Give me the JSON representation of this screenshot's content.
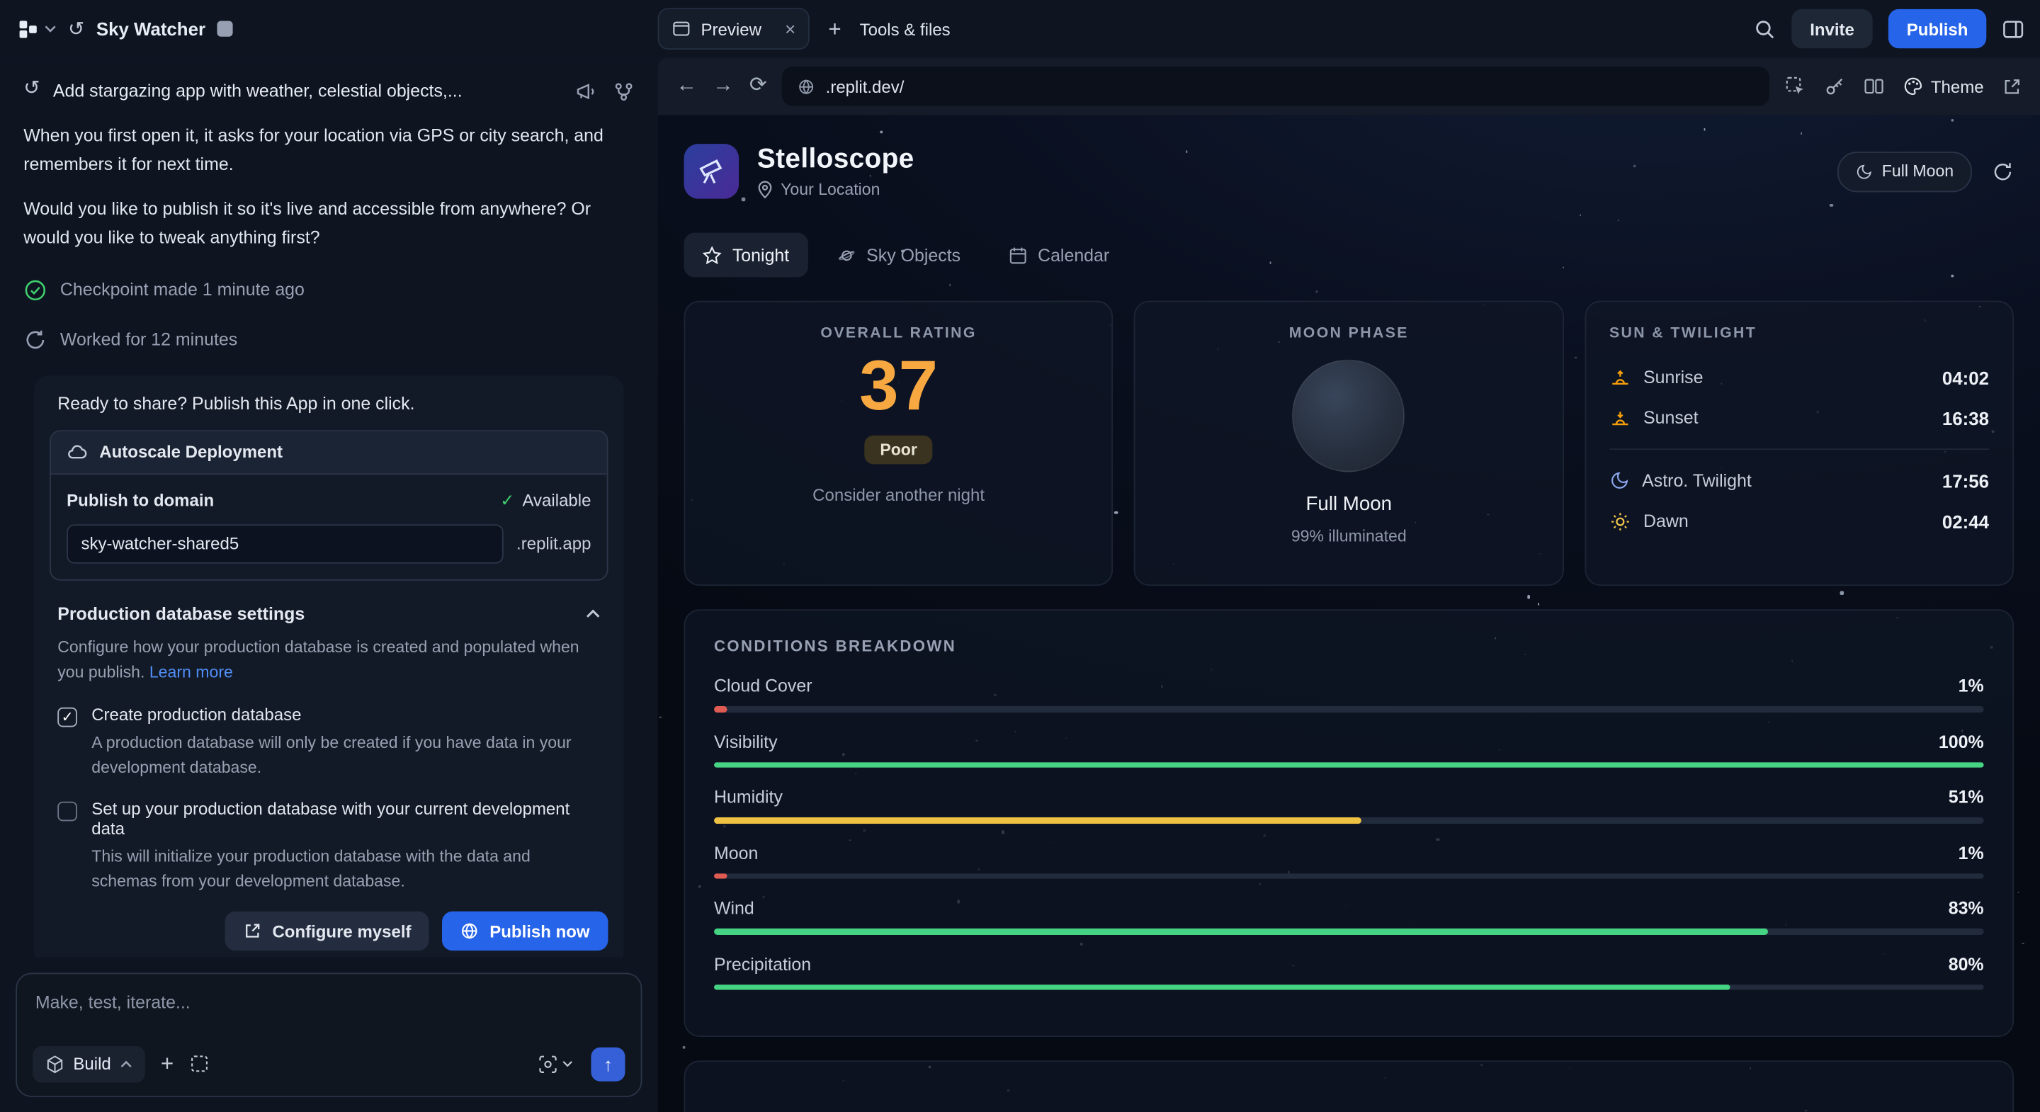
{
  "topbar": {
    "app_title": "Sky Watcher",
    "preview_tab": "Preview",
    "tools_files": "Tools & files",
    "invite_label": "Invite",
    "publish_label": "Publish"
  },
  "agent_panel": {
    "prompt_summary": "Add stargazing app with weather, celestial objects,...",
    "paragraph1": "When you first open it, it asks for your location via GPS or city search, and remembers it for next time.",
    "paragraph2": "Would you like to publish it so it's live and accessible from anywhere? Or would you like to tweak anything first?",
    "checkpoint_text": "Checkpoint made 1 minute ago",
    "worked_text": "Worked for 12 minutes",
    "publish_card": {
      "headline": "Ready to share? Publish this App in one click.",
      "deployment_label": "Autoscale Deployment",
      "domain_heading": "Publish to domain",
      "availability": "Available",
      "domain_value": "sky-watcher-shared5",
      "domain_suffix": ".replit.app",
      "db_section_title": "Production database settings",
      "db_section_desc": "Configure how your production database is created and populated when you publish.",
      "learn_more_label": "Learn more",
      "create_db_label": "Create production database",
      "create_db_desc": "A production database will only be created if you have data in your development database.",
      "seed_db_label": "Set up your production database with your current development data",
      "seed_db_desc": "This will initialize your production database with the data and schemas from your development database.",
      "configure_label": "Configure myself",
      "publish_now_label": "Publish now"
    },
    "composer": {
      "placeholder": "Make, test, iterate...",
      "mode_label": "Build"
    }
  },
  "browser": {
    "url": ".replit.dev/",
    "theme_label": "Theme"
  },
  "app": {
    "title": "Stelloscope",
    "location": "Your Location",
    "moon_chip_label": "Full Moon",
    "tabs": [
      {
        "label": "Tonight",
        "active": true
      },
      {
        "label": "Sky Objects",
        "active": false
      },
      {
        "label": "Calendar",
        "active": false
      }
    ],
    "overall_rating": {
      "heading": "OVERALL RATING",
      "score": "37",
      "badge": "Poor",
      "note": "Consider another night",
      "score_color": "#f8a840"
    },
    "moon_phase": {
      "heading": "MOON PHASE",
      "name": "Full Moon",
      "illumination": "99% illuminated"
    },
    "sun_twilight": {
      "heading": "SUN & TWILIGHT",
      "rows": [
        {
          "icon": "sunrise",
          "label": "Sunrise",
          "value": "04:02"
        },
        {
          "icon": "sunset",
          "label": "Sunset",
          "value": "16:38"
        },
        {
          "icon": "moon",
          "label": "Astro. Twilight",
          "value": "17:56"
        },
        {
          "icon": "sun",
          "label": "Dawn",
          "value": "02:44"
        }
      ]
    },
    "conditions": {
      "heading": "CONDITIONS BREAKDOWN",
      "rows": [
        {
          "label": "Cloud Cover",
          "percent": 1,
          "display": "1%",
          "color": "#e05b52"
        },
        {
          "label": "Visibility",
          "percent": 100,
          "display": "100%",
          "color": "#45d483"
        },
        {
          "label": "Humidity",
          "percent": 51,
          "display": "51%",
          "color": "#f0c244"
        },
        {
          "label": "Moon",
          "percent": 1,
          "display": "1%",
          "color": "#e05b52"
        },
        {
          "label": "Wind",
          "percent": 83,
          "display": "83%",
          "color": "#45d483"
        },
        {
          "label": "Precipitation",
          "percent": 80,
          "display": "80%",
          "color": "#45d483"
        }
      ]
    }
  }
}
